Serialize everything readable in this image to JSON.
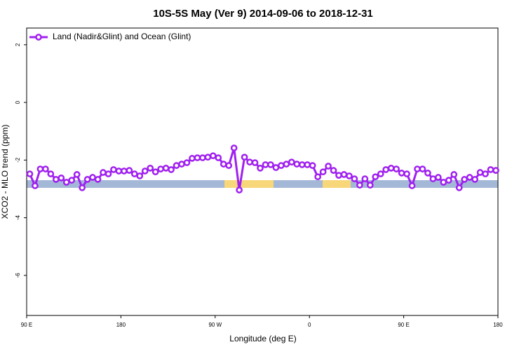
{
  "chart_data": {
    "type": "line",
    "title": "10S-5S May (Ver 9)   2014-09-06 to 2018-12-31",
    "x_label": "Longitude (deg E)",
    "y_label": "XCO2 - MLO trend (ppm)",
    "x": [
      93,
      98,
      103,
      108,
      113,
      118,
      123,
      128,
      133,
      138,
      143,
      148,
      153,
      158,
      163,
      168,
      173,
      178,
      183,
      188,
      193,
      198,
      203,
      208,
      213,
      218,
      223,
      228,
      233,
      238,
      243,
      248,
      253,
      258,
      263,
      268,
      273,
      278,
      283,
      288,
      293,
      298,
      303,
      308,
      313,
      318,
      323,
      328,
      333,
      338,
      343,
      348,
      353,
      358,
      363,
      368,
      373,
      378,
      383,
      388,
      393,
      398,
      403,
      408,
      413,
      418,
      423,
      428,
      433,
      438,
      443,
      448,
      453,
      458,
      463,
      468,
      473,
      478,
      483,
      488,
      493,
      498,
      503,
      508,
      513,
      518,
      523,
      528,
      533,
      538
    ],
    "series": [
      {
        "name": "Land (Nadir&Glint) and Ocean (Glint)",
        "color": "#a020f0",
        "values": [
          -2.48,
          -2.89,
          -2.31,
          -2.31,
          -2.48,
          -2.67,
          -2.62,
          -2.77,
          -2.7,
          -2.5,
          -2.96,
          -2.67,
          -2.6,
          -2.67,
          -2.43,
          -2.48,
          -2.33,
          -2.38,
          -2.38,
          -2.36,
          -2.48,
          -2.55,
          -2.38,
          -2.28,
          -2.41,
          -2.31,
          -2.28,
          -2.33,
          -2.19,
          -2.14,
          -2.09,
          -1.94,
          -1.92,
          -1.92,
          -1.9,
          -1.85,
          -1.92,
          -2.14,
          -2.19,
          -1.58,
          -3.04,
          -1.9,
          -2.07,
          -2.09,
          -2.28,
          -2.16,
          -2.16,
          -2.26,
          -2.19,
          -2.14,
          -2.07,
          -2.14,
          -2.16,
          -2.16,
          -2.19,
          -2.58,
          -2.41,
          -2.21,
          -2.36,
          -2.53,
          -2.5,
          -2.55,
          -2.65,
          -2.87,
          -2.65,
          -2.87,
          -2.58,
          -2.48,
          -2.33,
          -2.28,
          -2.31,
          -2.45,
          -2.48,
          -2.89,
          -2.31,
          -2.31,
          -2.45,
          -2.65,
          -2.6,
          -2.77,
          -2.7,
          -2.5,
          -2.96,
          -2.67,
          -2.6,
          -2.67,
          -2.43,
          -2.48,
          -2.33,
          -2.36
        ]
      }
    ],
    "xlim": [
      90,
      540
    ],
    "xticks": [
      {
        "value": 90,
        "label": "90 E"
      },
      180,
      {
        "value": 270,
        "label": "90 W"
      },
      {
        "value": 360,
        "label": "0"
      },
      {
        "value": 450,
        "label": "90 E"
      },
      {
        "value": 540,
        "label": "180"
      }
    ],
    "ylim": [
      -7.39,
      2.58
    ],
    "yticks": [
      2,
      0,
      -2,
      -4,
      -6
    ],
    "legend": "top-left"
  }
}
